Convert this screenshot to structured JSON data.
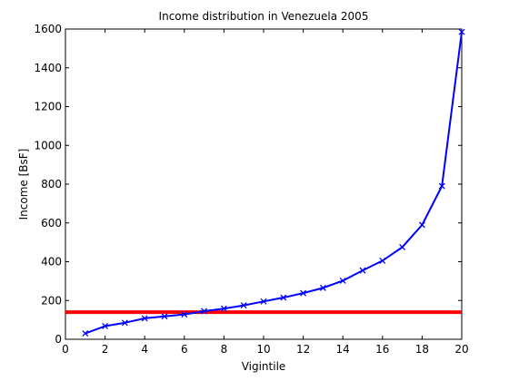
{
  "chart_data": {
    "type": "line",
    "title": "Income distribution in Venezuela 2005",
    "xlabel": "Vigintile",
    "ylabel": "Income [BsF]",
    "xlim": [
      0,
      20
    ],
    "ylim": [
      0,
      1600
    ],
    "xticks": [
      0,
      2,
      4,
      6,
      8,
      10,
      12,
      14,
      16,
      18,
      20
    ],
    "yticks": [
      0,
      200,
      400,
      600,
      800,
      1000,
      1200,
      1400,
      1600
    ],
    "grid": false,
    "series": [
      {
        "color": "#0000ff",
        "marker": "x",
        "x": [
          1,
          2,
          3,
          4,
          5,
          6,
          7,
          8,
          9,
          10,
          11,
          12,
          13,
          14,
          15,
          16,
          17,
          18,
          19,
          20
        ],
        "y": [
          30,
          68,
          85,
          108,
          118,
          128,
          145,
          158,
          175,
          195,
          215,
          238,
          265,
          302,
          355,
          405,
          475,
          590,
          790,
          1585
        ]
      }
    ],
    "reference_line": {
      "color": "#ff0000",
      "y": 140
    }
  }
}
